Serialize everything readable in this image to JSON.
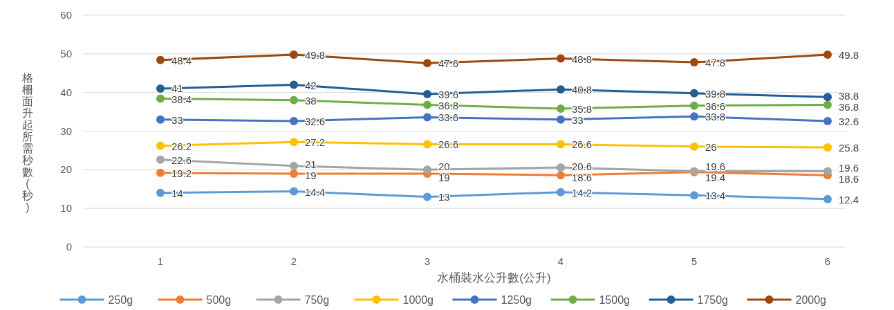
{
  "chart_data": {
    "type": "line",
    "xlabel": "水桶裝水公升數(公升)",
    "ylabel": "格柵面升起所需秒數(秒)",
    "categories": [
      "1",
      "2",
      "3",
      "4",
      "5",
      "6"
    ],
    "ylim": [
      0,
      60
    ],
    "yticks": [
      0,
      10,
      20,
      30,
      40,
      50,
      60
    ],
    "grid": "y",
    "legend": "bottom",
    "marker": "circle",
    "line_style": "solid",
    "data_labels": true,
    "series": [
      {
        "name": "250g",
        "color": "#5b9bd5",
        "values": [
          14,
          14.4,
          13,
          14.2,
          13.4,
          12.4
        ]
      },
      {
        "name": "500g",
        "color": "#ed7d31",
        "values": [
          19.2,
          19,
          19,
          18.6,
          19.4,
          18.6
        ]
      },
      {
        "name": "750g",
        "color": "#a5a5a5",
        "values": [
          22.6,
          21,
          20,
          20.6,
          19.6,
          19.6
        ]
      },
      {
        "name": "1000g",
        "color": "#ffc000",
        "values": [
          26.2,
          27.2,
          26.6,
          26.6,
          26,
          25.8
        ]
      },
      {
        "name": "1250g",
        "color": "#4472c4",
        "values": [
          33,
          32.6,
          33.6,
          33,
          33.8,
          32.6
        ]
      },
      {
        "name": "1500g",
        "color": "#70ad47",
        "values": [
          38.4,
          38,
          36.8,
          35.8,
          36.6,
          36.8
        ]
      },
      {
        "name": "1750g",
        "color": "#255e91",
        "values": [
          41,
          42,
          39.6,
          40.8,
          39.8,
          38.8
        ]
      },
      {
        "name": "2000g",
        "color": "#9e480e",
        "values": [
          48.4,
          49.8,
          47.6,
          48.8,
          47.8,
          49.8
        ]
      }
    ]
  }
}
